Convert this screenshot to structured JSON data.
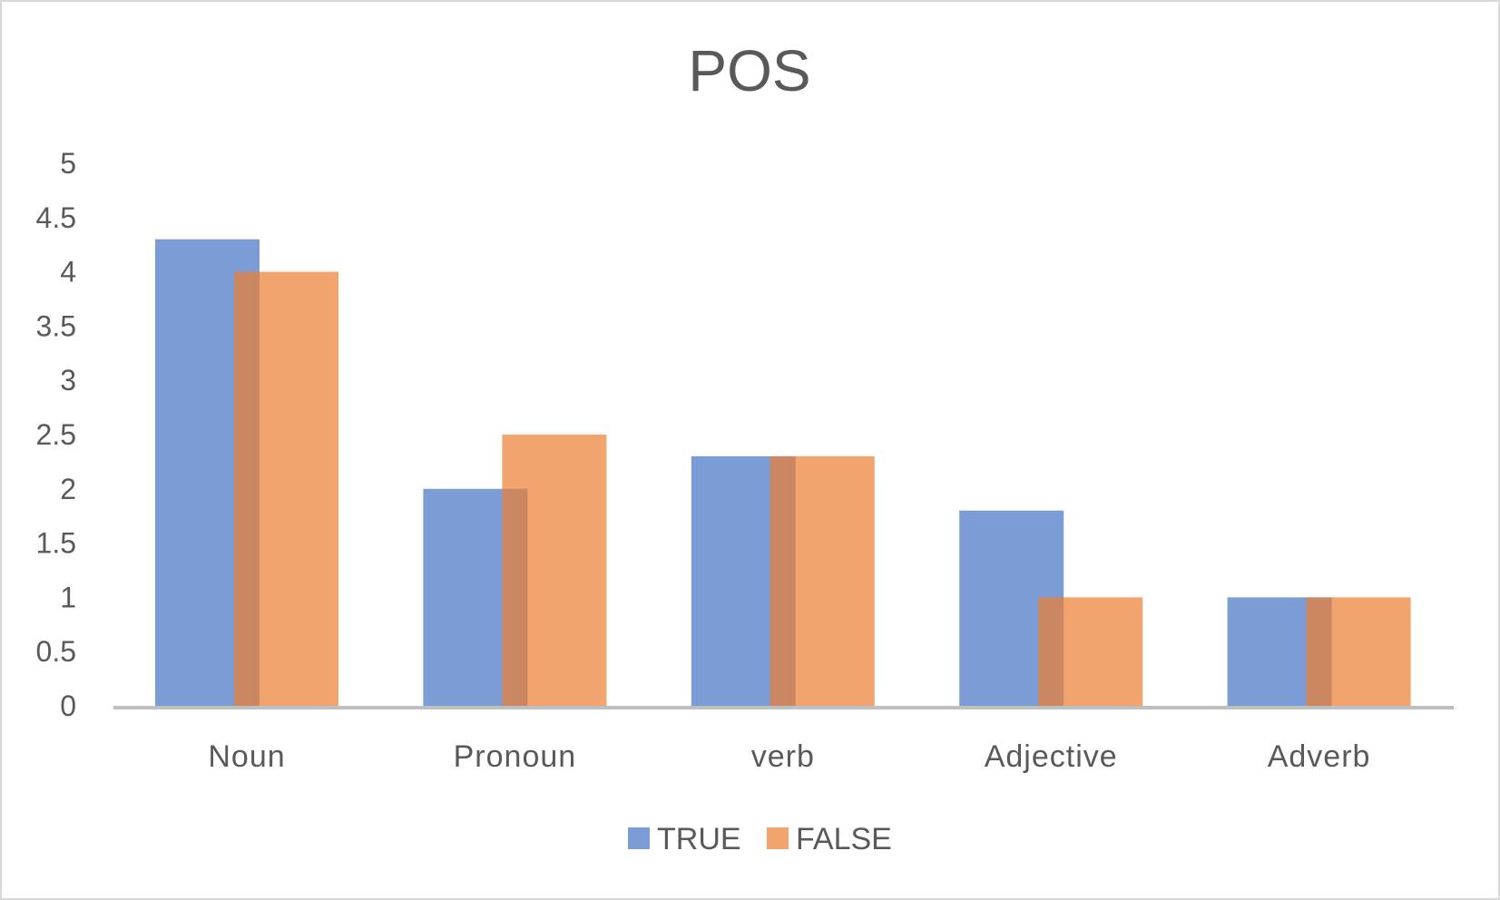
{
  "chart_data": {
    "type": "bar",
    "title": "POS",
    "xlabel": "",
    "ylabel": "",
    "categories": [
      "Noun",
      "Pronoun",
      "verb",
      "Adjective",
      "Adverb"
    ],
    "series": [
      {
        "name": "TRUE",
        "values": [
          4.3,
          2.0,
          2.3,
          1.8,
          1.0
        ],
        "color": "#4472C4"
      },
      {
        "name": "FALSE",
        "values": [
          4.0,
          2.5,
          2.3,
          1.0,
          1.0
        ],
        "color": "#ED7D31"
      }
    ],
    "ylim": [
      0,
      5
    ],
    "yticks": [
      "0",
      "0.5",
      "1",
      "1.5",
      "2",
      "2.5",
      "3",
      "3.5",
      "4",
      "4.5",
      "5"
    ],
    "bar_opacity": 0.7,
    "grid": false,
    "legend_position": "bottom"
  }
}
